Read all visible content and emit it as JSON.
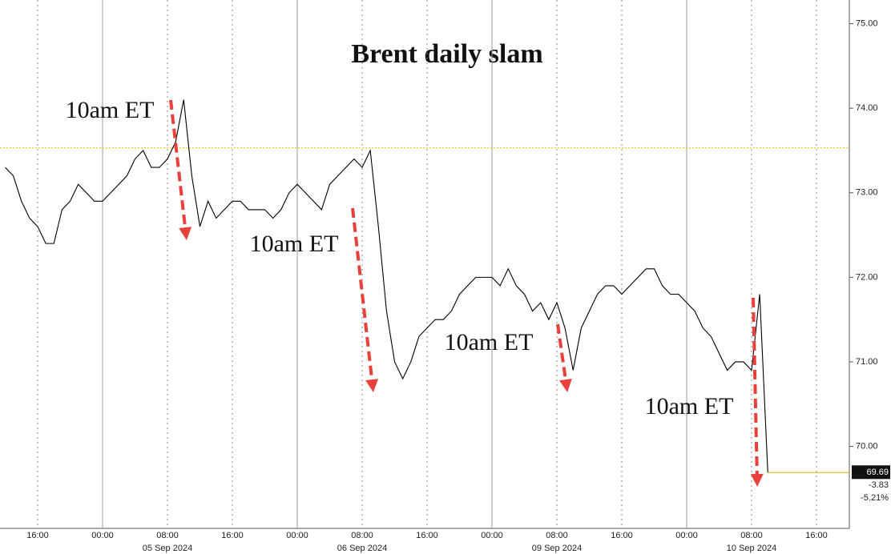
{
  "chart_data": {
    "type": "line",
    "title": "Brent daily slam",
    "annotations": [
      "10am ET",
      "10am ET",
      "10am ET",
      "10am ET"
    ],
    "color": "#000000",
    "categories": [
      null,
      null,
      null,
      null,
      "16:00",
      null,
      null,
      null,
      null,
      null,
      null,
      null,
      "00:00",
      null,
      null,
      null,
      null,
      null,
      null,
      null,
      "08:00",
      null,
      null,
      null,
      null,
      null,
      null,
      null,
      "16:00",
      null,
      null,
      null,
      null,
      null,
      null,
      null,
      "00:00",
      null,
      null,
      null,
      null,
      null,
      null,
      null,
      "08:00",
      null,
      null,
      null,
      null,
      null,
      null,
      null,
      "16:00",
      null,
      null,
      null,
      null,
      null,
      null,
      null,
      "00:00",
      null,
      null,
      null,
      null,
      null,
      null,
      null,
      "08:00",
      null,
      null,
      null,
      null,
      null,
      null,
      null,
      "16:00",
      null,
      null,
      null,
      null,
      null,
      null,
      null,
      "00:00",
      null,
      null,
      null,
      null,
      null,
      null,
      null,
      "08:00",
      null,
      null,
      null,
      null,
      null,
      null,
      null,
      "16:00",
      null,
      null,
      null,
      null
    ],
    "dates": [
      null,
      null,
      null,
      null,
      null,
      null,
      null,
      null,
      null,
      null,
      null,
      null,
      null,
      null,
      null,
      null,
      null,
      null,
      null,
      null,
      "05 Sep 2024",
      null,
      null,
      null,
      null,
      null,
      null,
      null,
      null,
      null,
      null,
      null,
      null,
      null,
      null,
      null,
      null,
      null,
      null,
      null,
      null,
      null,
      null,
      null,
      "06 Sep 2024",
      null,
      null,
      null,
      null,
      null,
      null,
      null,
      null,
      null,
      null,
      null,
      null,
      null,
      null,
      null,
      null,
      null,
      null,
      null,
      null,
      null,
      null,
      null,
      "09 Sep 2024",
      null,
      null,
      null,
      null,
      null,
      null,
      null,
      null,
      null,
      null,
      null,
      null,
      null,
      null,
      null,
      null,
      null,
      null,
      null,
      null,
      null,
      null,
      null,
      "10 Sep 2024",
      null,
      null,
      null,
      null,
      null,
      null,
      null,
      null,
      null,
      null,
      null,
      null
    ],
    "values": [
      73.3,
      73.2,
      72.9,
      72.7,
      72.6,
      72.4,
      72.4,
      72.8,
      72.9,
      73.1,
      73.0,
      72.9,
      72.9,
      73.0,
      73.1,
      73.2,
      73.4,
      73.5,
      73.3,
      73.3,
      73.4,
      73.6,
      74.1,
      73.2,
      72.6,
      72.9,
      72.7,
      72.8,
      72.9,
      72.9,
      72.8,
      72.8,
      72.8,
      72.7,
      72.8,
      73.0,
      73.1,
      73.0,
      72.9,
      72.8,
      73.1,
      73.2,
      73.3,
      73.4,
      73.3,
      73.5,
      72.6,
      71.6,
      71.0,
      70.8,
      71.0,
      71.3,
      71.4,
      71.5,
      71.5,
      71.6,
      71.8,
      71.9,
      72.0,
      72.0,
      72.0,
      71.9,
      72.1,
      71.9,
      71.8,
      71.6,
      71.7,
      71.5,
      71.7,
      71.4,
      70.9,
      71.4,
      71.6,
      71.8,
      71.9,
      71.9,
      71.8,
      71.9,
      72.0,
      72.1,
      72.1,
      71.9,
      71.8,
      71.8,
      71.7,
      71.6,
      71.4,
      71.3,
      71.1,
      70.9,
      71.0,
      71.0,
      70.9,
      71.8,
      69.69,
      null,
      null,
      null,
      null,
      null,
      null,
      null,
      null,
      null,
      null
    ],
    "ylim": [
      69.03,
      75.28
    ],
    "yticks": [
      {
        "value": 70,
        "label": "70.00"
      },
      {
        "value": 71,
        "label": "71.00"
      },
      {
        "value": 72,
        "label": "72.00"
      },
      {
        "value": 73,
        "label": "73.00"
      },
      {
        "value": 74,
        "label": "74.00"
      },
      {
        "value": 75,
        "label": "75.00"
      }
    ],
    "reference_line": 73.53,
    "reference_color": "#e8c400",
    "last_price_labels": [
      "69.69",
      "-3.83",
      "-5.21%"
    ]
  }
}
